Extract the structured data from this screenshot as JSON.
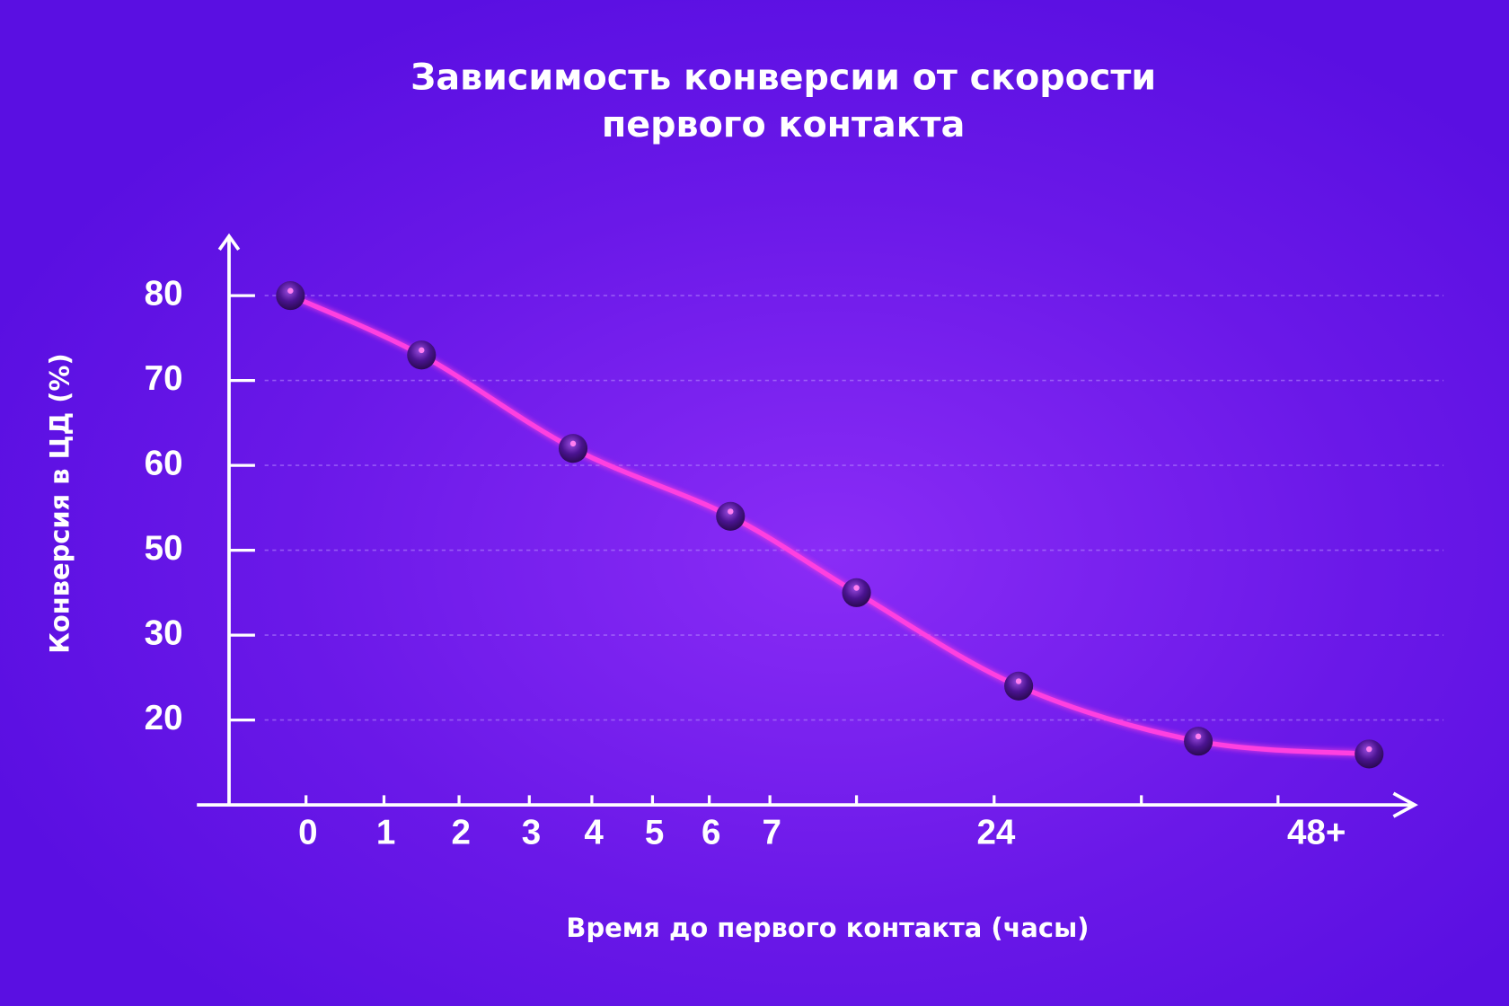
{
  "chart_data": {
    "type": "line",
    "title": [
      "Зависимость конверсии от скорости",
      "первого контакта"
    ],
    "x_label": "Время до первого контакта (часы)",
    "y_label": "Конверсия в ЦД (%)",
    "x": [
      -0.2,
      1.5,
      3.7,
      6.35,
      12,
      26,
      41,
      56
    ],
    "series": [
      {
        "color": "#ff3fe0",
        "values": [
          80,
          73,
          62,
          54,
          40,
          24,
          17.5,
          16
        ]
      }
    ],
    "xlim": [
      -1.4,
      60
    ],
    "xticks": [
      0,
      1,
      2,
      3,
      4,
      5,
      6,
      7,
      24,
      {
        "value": 48,
        "label": "48+"
      }
    ],
    "xminor": [
      12,
      36
    ],
    "ylim": [
      10,
      87
    ],
    "yticks": [
      80,
      70,
      60,
      50,
      30,
      20
    ],
    "grid": true
  }
}
